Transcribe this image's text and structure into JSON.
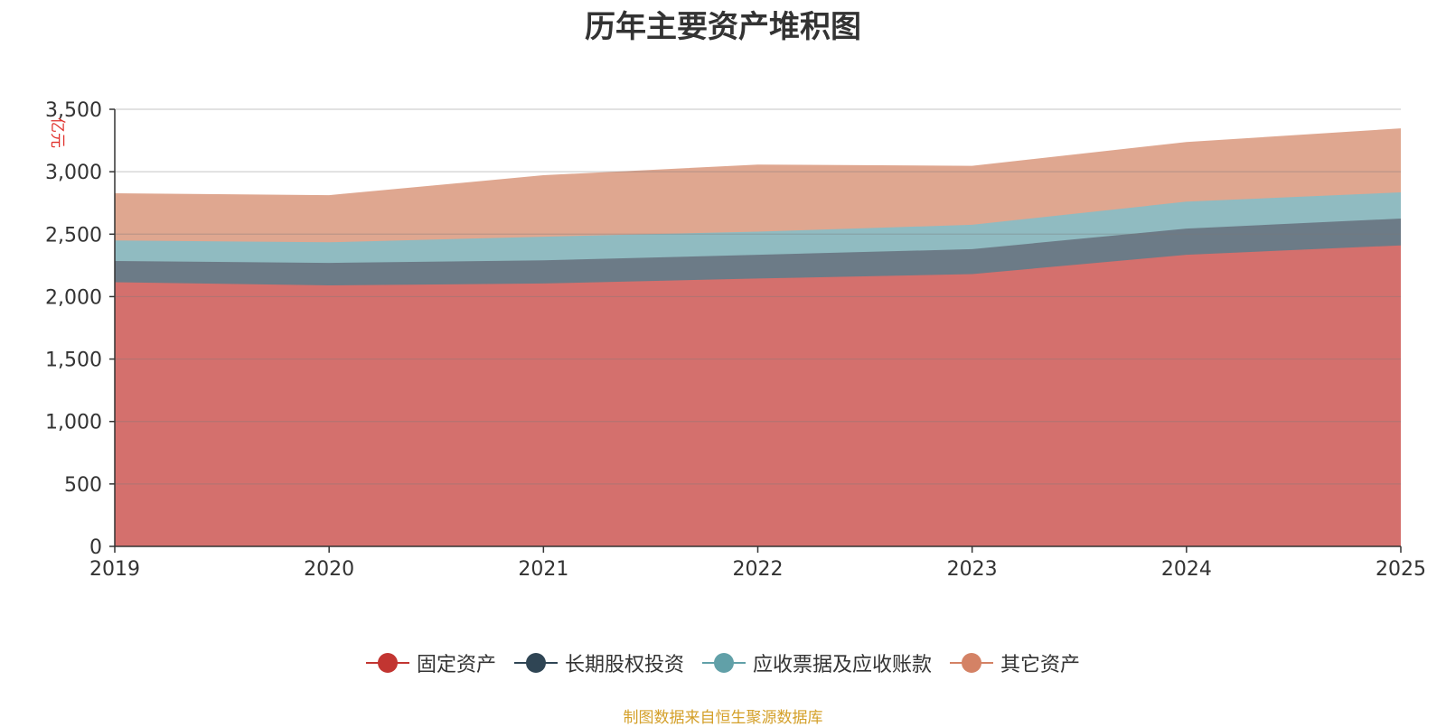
{
  "chart_data": {
    "type": "area",
    "stacked": true,
    "title": "历年主要资产堆积图",
    "ylabel": "亿元",
    "xlabel": "",
    "ylim": [
      0,
      3500
    ],
    "y_ticks": [
      "0",
      "500",
      "1,000",
      "1,500",
      "2,000",
      "2,500",
      "3,000",
      "3,500"
    ],
    "categories": [
      "2019",
      "2020",
      "2021",
      "2022",
      "2023",
      "2024",
      "2025"
    ],
    "series": [
      {
        "name": "固定资产",
        "color": "#c23531",
        "fill": "#d4706d",
        "values": [
          2115,
          2090,
          2105,
          2145,
          2180,
          2335,
          2410
        ]
      },
      {
        "name": "长期股权投资",
        "color": "#2f4554",
        "fill": "#6c7b87",
        "values": [
          170,
          180,
          185,
          190,
          200,
          210,
          215
        ]
      },
      {
        "name": "应收票据及应收账款",
        "color": "#61a0a8",
        "fill": "#90bbc1",
        "values": [
          165,
          165,
          190,
          185,
          195,
          215,
          210
        ]
      },
      {
        "name": "其它资产",
        "color": "#d48265",
        "fill": "#dfa790",
        "values": [
          370,
          370,
          485,
          530,
          465,
          470,
          505
        ]
      }
    ],
    "legend_position": "bottom",
    "grid": true
  },
  "footer": {
    "source": "制图数据来自恒生聚源数据库"
  }
}
